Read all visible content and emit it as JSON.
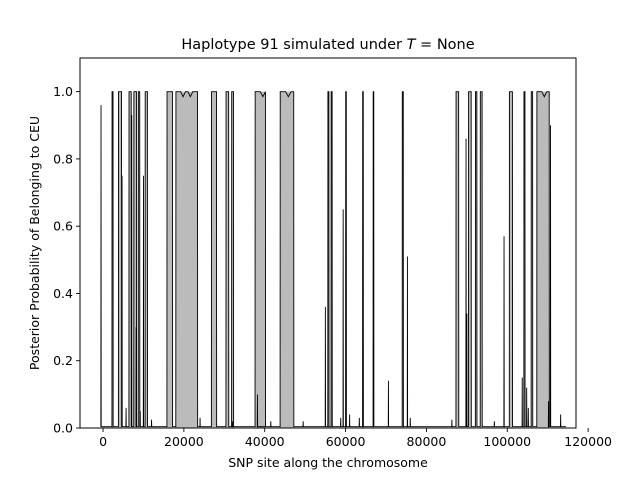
{
  "chart_data": {
    "type": "area",
    "title_prefix": "Haplotype 91 simulated under ",
    "title_var": "T",
    "title_suffix": " =  None",
    "xlabel": "SNP site along the chromosome",
    "ylabel": "Posterior Probability of Belonging to CEU",
    "xlim": [
      -5700,
      117000
    ],
    "ylim": [
      0,
      1.1
    ],
    "xticks": [
      0,
      20000,
      40000,
      60000,
      80000,
      100000,
      120000
    ],
    "xtick_labels": [
      "0",
      "20000",
      "40000",
      "60000",
      "80000",
      "100000",
      "120000"
    ],
    "yticks": [
      0.0,
      0.2,
      0.4,
      0.6,
      0.8,
      1.0
    ],
    "ytick_labels": [
      "0.0",
      "0.2",
      "0.4",
      "0.6",
      "0.8",
      "1.0"
    ],
    "grid": false,
    "fill_color": "#bbbbbb",
    "line_color": "#000000",
    "high_blocks": [
      [
        2200,
        2500
      ],
      [
        3800,
        4600
      ],
      [
        6400,
        7000
      ],
      [
        7600,
        8300
      ],
      [
        8700,
        9100
      ],
      [
        10400,
        11000
      ],
      [
        15800,
        17200
      ],
      [
        18000,
        23400
      ],
      [
        26800,
        28100
      ],
      [
        30400,
        31100
      ],
      [
        31800,
        32300
      ],
      [
        37600,
        40200
      ],
      [
        43800,
        47200
      ],
      [
        55600,
        55900
      ],
      [
        56400,
        56700
      ],
      [
        60000,
        60200
      ],
      [
        64200,
        64400
      ],
      [
        66800,
        67000
      ],
      [
        74000,
        74300
      ],
      [
        87300,
        88000
      ],
      [
        90400,
        91100
      ],
      [
        92100,
        92500
      ],
      [
        93300,
        93800
      ],
      [
        100500,
        101300
      ],
      [
        104100,
        104400
      ],
      [
        105900,
        106300
      ],
      [
        107300,
        110400
      ]
    ],
    "spikes": [
      [
        -500,
        0.96
      ],
      [
        4700,
        0.75
      ],
      [
        5700,
        0.06
      ],
      [
        7100,
        0.93
      ],
      [
        8200,
        0.3
      ],
      [
        9200,
        0.05
      ],
      [
        10000,
        0.75
      ],
      [
        12000,
        0.025
      ],
      [
        24000,
        0.03
      ],
      [
        32000,
        0.02
      ],
      [
        38200,
        0.1
      ],
      [
        41500,
        0.02
      ],
      [
        49500,
        0.02
      ],
      [
        55000,
        0.36
      ],
      [
        58800,
        0.03
      ],
      [
        59400,
        0.65
      ],
      [
        61000,
        0.04
      ],
      [
        63400,
        0.03
      ],
      [
        70600,
        0.14
      ],
      [
        75300,
        0.51
      ],
      [
        76000,
        0.03
      ],
      [
        86300,
        0.025
      ],
      [
        89800,
        0.86
      ],
      [
        90000,
        0.34
      ],
      [
        96800,
        0.02
      ],
      [
        99200,
        0.57
      ],
      [
        103700,
        0.15
      ],
      [
        104800,
        0.12
      ],
      [
        105200,
        0.06
      ],
      [
        110200,
        0.08
      ],
      [
        110700,
        0.9
      ],
      [
        113200,
        0.04
      ]
    ]
  }
}
